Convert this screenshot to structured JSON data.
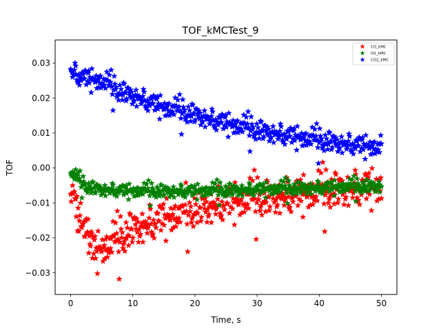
{
  "chart_data": {
    "type": "scatter",
    "title": "TOF_kMCTest_9",
    "xlabel": "Time, s",
    "ylabel": "TOF",
    "xlim": [
      -2.5,
      52.5
    ],
    "ylim": [
      -0.0362,
      0.0366
    ],
    "xticks": [
      0,
      10,
      20,
      30,
      40,
      50
    ],
    "yticks": [
      -0.03,
      -0.02,
      -0.01,
      0.0,
      0.01,
      0.02,
      0.03
    ],
    "xtick_labels": [
      "0",
      "10",
      "20",
      "30",
      "40",
      "50"
    ],
    "ytick_labels": [
      "−0.03",
      "−0.02",
      "−0.01",
      "0.00",
      "0.01",
      "0.02",
      "0.03"
    ],
    "grid": false,
    "legend_position": "top-right",
    "marker": "star",
    "series": [
      {
        "name": "CO_kMC",
        "color": "#ff0000",
        "trend": [
          [
            0,
            -0.006
          ],
          [
            1,
            -0.011
          ],
          [
            2,
            -0.016
          ],
          [
            3,
            -0.021
          ],
          [
            4,
            -0.0235
          ],
          [
            5,
            -0.0225
          ],
          [
            7,
            -0.021
          ],
          [
            10,
            -0.017
          ],
          [
            15,
            -0.014
          ],
          [
            20,
            -0.0115
          ],
          [
            25,
            -0.0095
          ],
          [
            30,
            -0.0085
          ],
          [
            35,
            -0.0075
          ],
          [
            40,
            -0.0065
          ],
          [
            45,
            -0.0055
          ],
          [
            50,
            -0.005
          ]
        ],
        "noise": 0.003
      },
      {
        "name": "O2_kMC",
        "color": "#008000",
        "trend": [
          [
            0,
            -0.001
          ],
          [
            1,
            -0.003
          ],
          [
            2,
            -0.0045
          ],
          [
            3,
            -0.0055
          ],
          [
            5,
            -0.006
          ],
          [
            10,
            -0.0065
          ],
          [
            20,
            -0.0065
          ],
          [
            30,
            -0.006
          ],
          [
            40,
            -0.0055
          ],
          [
            50,
            -0.005
          ]
        ],
        "noise": 0.0011
      },
      {
        "name": "CO2_kMC",
        "color": "#0000ff",
        "trend": [
          [
            0,
            0.028
          ],
          [
            2,
            0.026
          ],
          [
            5,
            0.025
          ],
          [
            8,
            0.022
          ],
          [
            10,
            0.021
          ],
          [
            15,
            0.0175
          ],
          [
            20,
            0.0155
          ],
          [
            25,
            0.013
          ],
          [
            30,
            0.011
          ],
          [
            35,
            0.0095
          ],
          [
            40,
            0.008
          ],
          [
            45,
            0.007
          ],
          [
            50,
            0.006
          ]
        ],
        "noise": 0.0017
      }
    ],
    "points_per_series": 500,
    "x_range": [
      0,
      50
    ]
  }
}
